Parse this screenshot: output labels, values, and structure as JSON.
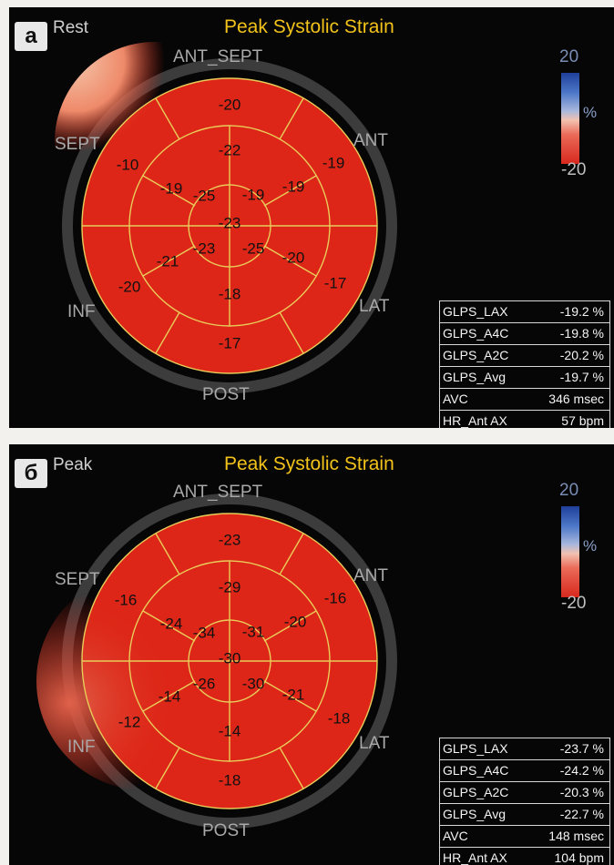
{
  "title": "Peak Systolic Strain",
  "region_labels": {
    "ant_sept": "ANT_SEPT",
    "ant": "ANT",
    "sept": "SEPT",
    "inf": "INF",
    "lat": "LAT",
    "post": "POST"
  },
  "colorbar": {
    "top": "20",
    "unit": "%",
    "bottom": "-20"
  },
  "colors": {
    "strain_red": "#dd2617",
    "title_yellow": "#f2c21b",
    "grid_line": "#e9cc5a"
  },
  "panels": [
    {
      "label": "а",
      "state": "Rest",
      "segments": {
        "outer": [
          "-20",
          "-19",
          "-17",
          "-17",
          "-20",
          "-10"
        ],
        "middle": [
          "-22",
          "-19",
          "-20",
          "-18",
          "-21",
          "-19"
        ],
        "inner": [
          "-19",
          "-25",
          "-23",
          "-25"
        ],
        "apex": "-23"
      },
      "stats": [
        {
          "label": "GLPS_LAX",
          "value": "-19.2 %"
        },
        {
          "label": "GLPS_A4C",
          "value": "-19.8 %"
        },
        {
          "label": "GLPS_A2C",
          "value": "-20.2 %"
        },
        {
          "label": "GLPS_Avg",
          "value": "-19.7 %"
        },
        {
          "label": "AVC",
          "value": "346 msec"
        },
        {
          "label": "HR_Ant AX",
          "value": "57 bpm"
        }
      ]
    },
    {
      "label": "б",
      "state": "Peak",
      "segments": {
        "outer": [
          "-23",
          "-16",
          "-18",
          "-18",
          "-12",
          "-16"
        ],
        "middle": [
          "-29",
          "-20",
          "-21",
          "-14",
          "-14",
          "-24"
        ],
        "inner": [
          "-31",
          "-30",
          "-26",
          "-34"
        ],
        "apex": "-30"
      },
      "stats": [
        {
          "label": "GLPS_LAX",
          "value": "-23.7 %"
        },
        {
          "label": "GLPS_A4C",
          "value": "-24.2 %"
        },
        {
          "label": "GLPS_A2C",
          "value": "-20.3 %"
        },
        {
          "label": "GLPS_Avg",
          "value": "-22.7 %"
        },
        {
          "label": "AVC",
          "value": "148 msec"
        },
        {
          "label": "HR_Ant AX",
          "value": "104 bpm"
        }
      ]
    }
  ]
}
